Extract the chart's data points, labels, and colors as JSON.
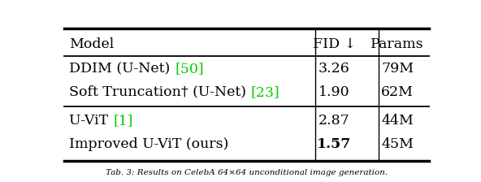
{
  "figsize": [
    5.92,
    2.24
  ],
  "dpi": 100,
  "background_color": "#ffffff",
  "header": [
    "Model",
    "FID ↓",
    "Params"
  ],
  "green_color": "#00cc00",
  "text_color": "#000000",
  "font_size": 12.5,
  "rows_model": [
    [
      "DDIM (U-Net) ",
      "[50]"
    ],
    [
      "Soft Truncation† (U-Net) ",
      "[23]"
    ],
    [
      "U-ViT ",
      "[1]"
    ],
    [
      "Improved U-ViT (ours)",
      ""
    ]
  ],
  "rows_fid": [
    "3.26",
    "1.90",
    "2.87",
    "1.57"
  ],
  "rows_params": [
    "79M",
    "62M",
    "44M",
    "45M"
  ],
  "rows_bold_fid": [
    false,
    false,
    false,
    true
  ]
}
